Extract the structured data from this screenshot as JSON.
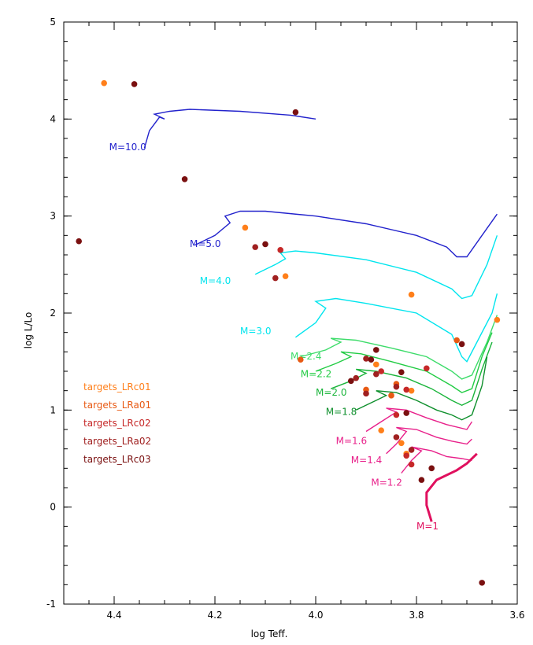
{
  "chart_data": {
    "type": "scatter",
    "title": "",
    "xlabel": "log Teff.",
    "ylabel": "log L/Lo",
    "xlim": [
      4.5,
      3.6
    ],
    "ylim": [
      -1,
      5
    ],
    "xticks": [
      4.4,
      4.2,
      4.0,
      3.8,
      3.6
    ],
    "xtick_labels": [
      "4.4",
      "4.2",
      "4.0",
      "3.8",
      "3.6"
    ],
    "yticks": [
      -1,
      0,
      1,
      2,
      3,
      4,
      5
    ],
    "ytick_labels": [
      "-1",
      "0",
      "1",
      "2",
      "3",
      "4",
      "5"
    ],
    "legend": {
      "placement": "left",
      "entries": [
        {
          "label": "targets_LRc01",
          "color": "#ff7f1a"
        },
        {
          "label": "targets_LRa01",
          "color": "#e85a14"
        },
        {
          "label": "targets_LRc02",
          "color": "#c62828"
        },
        {
          "label": "targets_LRa02",
          "color": "#a02020"
        },
        {
          "label": "targets_LRc03",
          "color": "#7a1010"
        }
      ]
    },
    "tracks": [
      {
        "label": "M=10.0",
        "color": "#2222cc",
        "label_x": 4.41,
        "label_y": 3.68,
        "points": [
          [
            4.34,
            3.7
          ],
          [
            4.33,
            3.88
          ],
          [
            4.31,
            4.02
          ],
          [
            4.3,
            4.0
          ],
          [
            4.32,
            4.05
          ],
          [
            4.29,
            4.08
          ],
          [
            4.25,
            4.1
          ],
          [
            4.15,
            4.08
          ],
          [
            4.05,
            4.04
          ],
          [
            4.0,
            4.0
          ]
        ]
      },
      {
        "label": "M=5.0",
        "color": "#2222cc",
        "label_x": 4.25,
        "label_y": 2.68,
        "points": [
          [
            4.24,
            2.7
          ],
          [
            4.2,
            2.8
          ],
          [
            4.17,
            2.93
          ],
          [
            4.18,
            3.0
          ],
          [
            4.15,
            3.05
          ],
          [
            4.1,
            3.05
          ],
          [
            4.0,
            3.0
          ],
          [
            3.9,
            2.92
          ],
          [
            3.8,
            2.8
          ],
          [
            3.74,
            2.68
          ],
          [
            3.72,
            2.58
          ],
          [
            3.7,
            2.58
          ],
          [
            3.67,
            2.8
          ],
          [
            3.64,
            3.02
          ]
        ]
      },
      {
        "label": "M=4.0",
        "color": "#00e5ee",
        "label_x": 4.23,
        "label_y": 2.3,
        "points": [
          [
            4.12,
            2.4
          ],
          [
            4.08,
            2.5
          ],
          [
            4.06,
            2.56
          ],
          [
            4.07,
            2.62
          ],
          [
            4.04,
            2.64
          ],
          [
            4.0,
            2.62
          ],
          [
            3.9,
            2.55
          ],
          [
            3.8,
            2.42
          ],
          [
            3.73,
            2.25
          ],
          [
            3.71,
            2.15
          ],
          [
            3.69,
            2.18
          ],
          [
            3.66,
            2.5
          ],
          [
            3.64,
            2.8
          ]
        ]
      },
      {
        "label": "M=3.0",
        "color": "#00e5ee",
        "label_x": 4.15,
        "label_y": 1.78,
        "points": [
          [
            4.04,
            1.75
          ],
          [
            4.0,
            1.9
          ],
          [
            3.98,
            2.05
          ],
          [
            4.0,
            2.12
          ],
          [
            3.96,
            2.15
          ],
          [
            3.9,
            2.1
          ],
          [
            3.8,
            2.0
          ],
          [
            3.73,
            1.78
          ],
          [
            3.71,
            1.55
          ],
          [
            3.7,
            1.5
          ],
          [
            3.68,
            1.7
          ],
          [
            3.65,
            2.0
          ],
          [
            3.64,
            2.2
          ]
        ]
      },
      {
        "label": "M=2.4",
        "color": "#3ddc6a",
        "label_x": 4.05,
        "label_y": 1.52,
        "points": [
          [
            4.03,
            1.55
          ],
          [
            3.98,
            1.62
          ],
          [
            3.95,
            1.7
          ],
          [
            3.97,
            1.74
          ],
          [
            3.92,
            1.72
          ],
          [
            3.85,
            1.64
          ],
          [
            3.78,
            1.55
          ],
          [
            3.73,
            1.4
          ],
          [
            3.71,
            1.32
          ],
          [
            3.69,
            1.36
          ],
          [
            3.66,
            1.7
          ],
          [
            3.64,
            1.98
          ]
        ]
      },
      {
        "label": "M=2.2",
        "color": "#22cc44",
        "label_x": 4.03,
        "label_y": 1.34,
        "points": [
          [
            4.0,
            1.4
          ],
          [
            3.96,
            1.48
          ],
          [
            3.93,
            1.55
          ],
          [
            3.95,
            1.6
          ],
          [
            3.91,
            1.58
          ],
          [
            3.85,
            1.5
          ],
          [
            3.78,
            1.4
          ],
          [
            3.73,
            1.25
          ],
          [
            3.71,
            1.18
          ],
          [
            3.69,
            1.22
          ],
          [
            3.67,
            1.55
          ],
          [
            3.65,
            1.8
          ]
        ]
      },
      {
        "label": "M=2.0",
        "color": "#19b43a",
        "label_x": 4.0,
        "label_y": 1.15,
        "points": [
          [
            3.97,
            1.22
          ],
          [
            3.93,
            1.3
          ],
          [
            3.9,
            1.38
          ],
          [
            3.92,
            1.42
          ],
          [
            3.88,
            1.4
          ],
          [
            3.82,
            1.33
          ],
          [
            3.77,
            1.22
          ],
          [
            3.73,
            1.1
          ],
          [
            3.71,
            1.05
          ],
          [
            3.69,
            1.1
          ],
          [
            3.67,
            1.42
          ],
          [
            3.65,
            1.7
          ]
        ]
      },
      {
        "label": "M=1.8",
        "color": "#0e8f2c",
        "label_x": 3.98,
        "label_y": 0.95,
        "points": [
          [
            3.92,
            1.0
          ],
          [
            3.88,
            1.1
          ],
          [
            3.86,
            1.15
          ],
          [
            3.88,
            1.2
          ],
          [
            3.84,
            1.18
          ],
          [
            3.8,
            1.1
          ],
          [
            3.76,
            1.0
          ],
          [
            3.73,
            0.95
          ],
          [
            3.71,
            0.9
          ],
          [
            3.69,
            0.95
          ],
          [
            3.67,
            1.25
          ],
          [
            3.66,
            1.55
          ]
        ]
      },
      {
        "label": "M=1.6",
        "color": "#e8208a",
        "label_x": 3.96,
        "label_y": 0.65,
        "points": [
          [
            3.9,
            0.78
          ],
          [
            3.87,
            0.88
          ],
          [
            3.84,
            0.98
          ],
          [
            3.86,
            1.02
          ],
          [
            3.82,
            1.0
          ],
          [
            3.78,
            0.92
          ],
          [
            3.74,
            0.85
          ],
          [
            3.7,
            0.8
          ],
          [
            3.69,
            0.88
          ]
        ]
      },
      {
        "label": "M=1.4",
        "color": "#e8208a",
        "label_x": 3.93,
        "label_y": 0.45,
        "points": [
          [
            3.86,
            0.55
          ],
          [
            3.84,
            0.65
          ],
          [
            3.82,
            0.78
          ],
          [
            3.84,
            0.82
          ],
          [
            3.8,
            0.8
          ],
          [
            3.76,
            0.72
          ],
          [
            3.73,
            0.68
          ],
          [
            3.7,
            0.65
          ],
          [
            3.69,
            0.7
          ]
        ]
      },
      {
        "label": "M=1.2",
        "color": "#e8208a",
        "label_x": 3.89,
        "label_y": 0.22,
        "points": [
          [
            3.83,
            0.35
          ],
          [
            3.81,
            0.48
          ],
          [
            3.79,
            0.58
          ],
          [
            3.81,
            0.62
          ],
          [
            3.77,
            0.58
          ],
          [
            3.74,
            0.52
          ],
          [
            3.71,
            0.5
          ],
          [
            3.69,
            0.48
          ]
        ]
      },
      {
        "label": "M=1",
        "color": "#e0105e",
        "label_x": 3.8,
        "label_y": -0.23,
        "points": [
          [
            3.77,
            -0.15
          ],
          [
            3.78,
            0.02
          ],
          [
            3.78,
            0.15
          ],
          [
            3.76,
            0.28
          ],
          [
            3.72,
            0.38
          ],
          [
            3.7,
            0.45
          ],
          [
            3.68,
            0.55
          ]
        ]
      }
    ],
    "series": [
      {
        "name": "targets_LRc01",
        "color": "#ff7f1a",
        "points": [
          [
            4.42,
            4.37
          ],
          [
            4.14,
            2.88
          ],
          [
            4.06,
            2.38
          ],
          [
            3.81,
            2.19
          ],
          [
            3.64,
            1.93
          ],
          [
            3.88,
            1.47
          ],
          [
            3.81,
            1.2
          ],
          [
            3.83,
            0.66
          ],
          [
            3.87,
            0.79
          ],
          [
            3.82,
            0.55
          ]
        ]
      },
      {
        "name": "targets_LRa01",
        "color": "#e85a14",
        "points": [
          [
            3.72,
            1.72
          ],
          [
            4.03,
            1.52
          ],
          [
            3.85,
            1.15
          ],
          [
            3.9,
            1.21
          ],
          [
            3.84,
            1.27
          ]
        ]
      },
      {
        "name": "targets_LRc02",
        "color": "#c62828",
        "points": [
          [
            4.07,
            2.65
          ],
          [
            3.78,
            1.43
          ],
          [
            3.82,
            1.21
          ],
          [
            3.84,
            0.95
          ],
          [
            3.87,
            1.4
          ],
          [
            3.81,
            0.44
          ],
          [
            3.82,
            0.53
          ]
        ]
      },
      {
        "name": "targets_LRa02",
        "color": "#a02020",
        "points": [
          [
            4.12,
            2.68
          ],
          [
            4.08,
            2.36
          ],
          [
            3.9,
            1.53
          ],
          [
            3.92,
            1.33
          ],
          [
            3.88,
            1.37
          ],
          [
            3.84,
            0.72
          ],
          [
            3.81,
            0.59
          ],
          [
            3.9,
            1.17
          ],
          [
            3.84,
            1.24
          ]
        ]
      },
      {
        "name": "targets_LRc03",
        "color": "#7a1010",
        "points": [
          [
            4.36,
            4.36
          ],
          [
            4.04,
            4.07
          ],
          [
            4.26,
            3.38
          ],
          [
            4.47,
            2.74
          ],
          [
            4.1,
            2.71
          ],
          [
            3.71,
            1.68
          ],
          [
            3.88,
            1.62
          ],
          [
            3.89,
            1.52
          ],
          [
            3.93,
            1.3
          ],
          [
            3.83,
            1.39
          ],
          [
            3.82,
            0.97
          ],
          [
            3.77,
            0.4
          ],
          [
            3.79,
            0.28
          ],
          [
            3.67,
            -0.78
          ]
        ]
      }
    ]
  }
}
